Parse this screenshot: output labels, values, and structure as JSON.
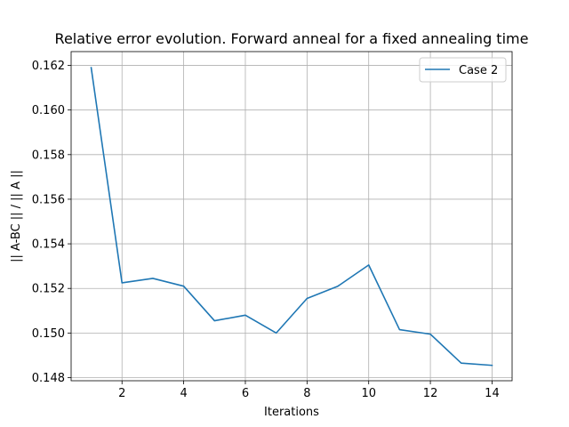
{
  "chart_data": {
    "type": "line",
    "title": "Relative error evolution. Forward anneal for a fixed annealing time",
    "xlabel": "Iterations",
    "ylabel": "|| A-BC || / || A ||",
    "xlim": [
      0.35,
      14.65
    ],
    "ylim": [
      0.14786,
      0.16262
    ],
    "xticks": [
      2,
      4,
      6,
      8,
      10,
      12,
      14
    ],
    "yticks": [
      0.148,
      0.15,
      0.152,
      0.154,
      0.156,
      0.158,
      0.16,
      0.162
    ],
    "ytick_labels": [
      "0.148",
      "0.150",
      "0.152",
      "0.154",
      "0.156",
      "0.158",
      "0.160",
      "0.162"
    ],
    "grid": true,
    "legend": "top-right",
    "series": [
      {
        "name": "Case 2",
        "color": "#1f77b4",
        "x": [
          1,
          2,
          3,
          4,
          5,
          6,
          7,
          8,
          9,
          10,
          11,
          12,
          13,
          14
        ],
        "values": [
          0.1619,
          0.15225,
          0.15245,
          0.1521,
          0.15055,
          0.1508,
          0.15,
          0.15155,
          0.1521,
          0.15305,
          0.15015,
          0.14995,
          0.14865,
          0.14855
        ]
      }
    ]
  }
}
